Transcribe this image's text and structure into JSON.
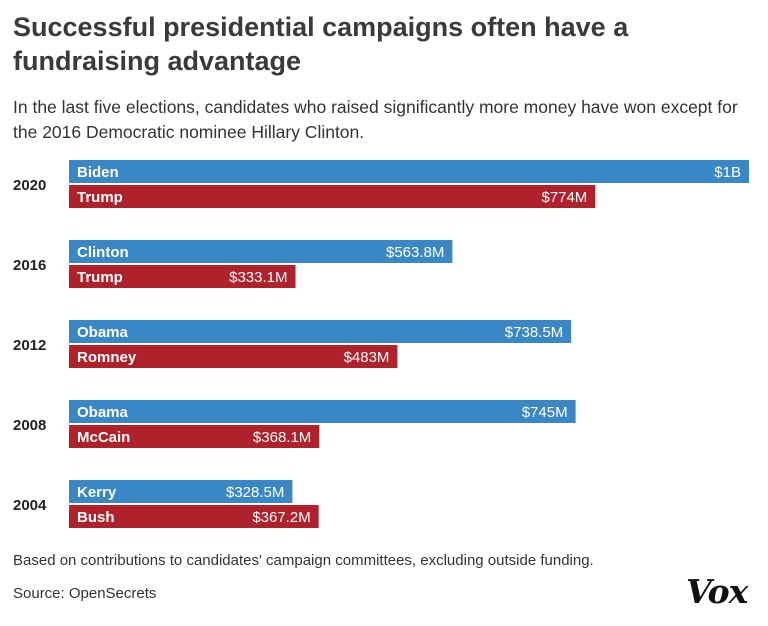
{
  "title": "Successful presidential campaigns often have a fundraising advantage",
  "subtitle": "In the last five elections, candidates who raised significantly more money have won except for the 2016 Democratic nominee Hillary Clinton.",
  "note": "Based on contributions to candidates' campaign committees, excluding outside funding.",
  "source": "Source: OpenSecrets",
  "logo": "Vox",
  "colors": {
    "democrat": "#3a87c6",
    "republican": "#b0222b"
  },
  "chart_data": {
    "type": "bar",
    "orientation": "horizontal",
    "unit": "USD millions",
    "xlim": [
      0,
      1000
    ],
    "groups": [
      {
        "year": "2020",
        "bars": [
          {
            "name": "Biden",
            "value": 1000,
            "label": "$1B",
            "party": "democrat"
          },
          {
            "name": "Trump",
            "value": 774,
            "label": "$774M",
            "party": "republican"
          }
        ]
      },
      {
        "year": "2016",
        "bars": [
          {
            "name": "Clinton",
            "value": 563.8,
            "label": "$563.8M",
            "party": "democrat"
          },
          {
            "name": "Trump",
            "value": 333.1,
            "label": "$333.1M",
            "party": "republican"
          }
        ]
      },
      {
        "year": "2012",
        "bars": [
          {
            "name": "Obama",
            "value": 738.5,
            "label": "$738.5M",
            "party": "democrat"
          },
          {
            "name": "Romney",
            "value": 483,
            "label": "$483M",
            "party": "republican"
          }
        ]
      },
      {
        "year": "2008",
        "bars": [
          {
            "name": "Obama",
            "value": 745,
            "label": "$745M",
            "party": "democrat"
          },
          {
            "name": "McCain",
            "value": 368.1,
            "label": "$368.1M",
            "party": "republican"
          }
        ]
      },
      {
        "year": "2004",
        "bars": [
          {
            "name": "Kerry",
            "value": 328.5,
            "label": "$328.5M",
            "party": "democrat"
          },
          {
            "name": "Bush",
            "value": 367.2,
            "label": "$367.2M",
            "party": "republican"
          }
        ]
      }
    ]
  }
}
